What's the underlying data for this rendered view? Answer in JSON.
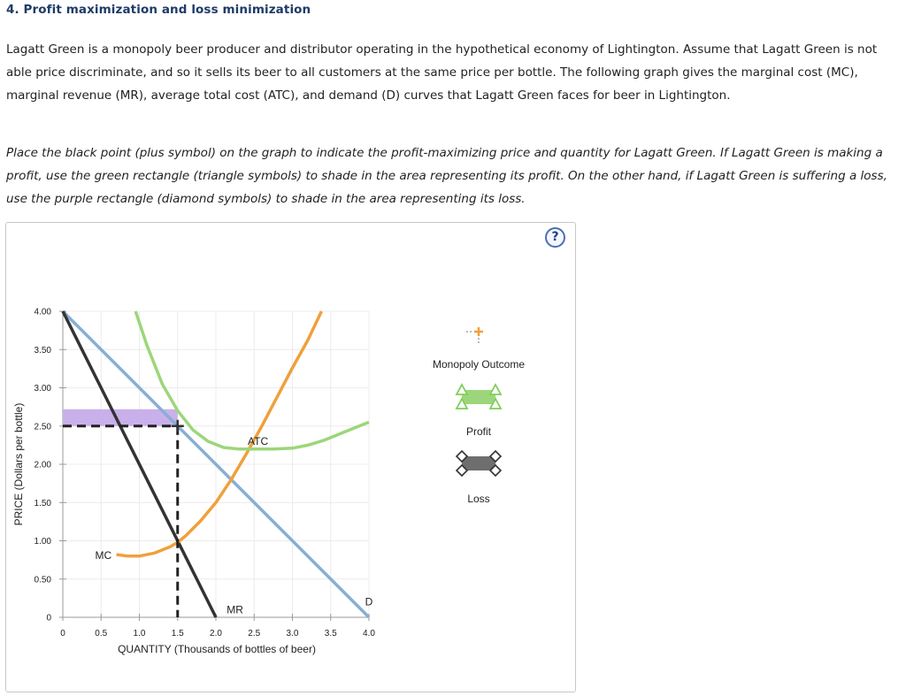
{
  "heading": "4. Profit maximization and loss minimization",
  "intro": "Lagatt Green is a monopoly beer producer and distributor operating in the hypothetical economy of Lightington. Assume that Lagatt Green is not able price discriminate, and so it sells its beer to all customers at the same price per bottle. The following graph gives the marginal cost (MC), marginal revenue (MR), average total cost (ATC), and demand (D) curves that Lagatt Green faces for beer in Lightington.",
  "instructions": "Place the black point (plus symbol) on the graph to indicate the profit-maximizing price and quantity for Lagatt Green. If Lagatt Green is making a profit, use the green rectangle (triangle symbols) to shade in the area representing its profit. On the other hand, if Lagatt Green is suffering a loss, use the purple rectangle (diamond symbols) to shade in the area representing its loss.",
  "help_symbol": "?",
  "legend": {
    "monopoly_outcome": "Monopoly Outcome",
    "profit": "Profit",
    "loss": "Loss"
  },
  "colors": {
    "demand": "#88aed4",
    "mr": "#333333",
    "mc": "#f0a03c",
    "atc": "#9dd67a",
    "loss_fill": "#c9b0ea",
    "profit_fill": "#9dd67a",
    "loss_icon": "#6e6e6e",
    "point": "#333333"
  },
  "chart_data": {
    "type": "line",
    "xlabel": "QUANTITY (Thousands of bottles of beer)",
    "ylabel": "PRICE (Dollars per bottle)",
    "xlim": [
      0,
      4.0
    ],
    "ylim": [
      0,
      4.0
    ],
    "x_ticks": [
      0,
      0.5,
      1.0,
      1.5,
      2.0,
      2.5,
      3.0,
      3.5,
      4.0
    ],
    "x_tick_labels": [
      "0",
      "0.5",
      "1.0",
      "1.5",
      "2.0",
      "2.5",
      "3.0",
      "3.5",
      "4.0"
    ],
    "y_ticks": [
      0,
      0.5,
      1.0,
      1.5,
      2.0,
      2.5,
      3.0,
      3.5,
      4.0
    ],
    "y_tick_labels": [
      "0",
      "0.50",
      "1.00",
      "1.50",
      "2.00",
      "2.50",
      "3.00",
      "3.50",
      "4.00"
    ],
    "grid": true,
    "series": [
      {
        "name": "D",
        "label_at": [
          4.0,
          0.2
        ],
        "points": [
          [
            0,
            4.0
          ],
          [
            4.0,
            0
          ]
        ]
      },
      {
        "name": "MR",
        "label_at": [
          2.25,
          0.1
        ],
        "points": [
          [
            0,
            4.0
          ],
          [
            2.0,
            0
          ]
        ]
      },
      {
        "name": "MC",
        "label_at": [
          0.53,
          0.81
        ],
        "points": [
          [
            0.7,
            0.82
          ],
          [
            0.85,
            0.8
          ],
          [
            1.0,
            0.8
          ],
          [
            1.2,
            0.84
          ],
          [
            1.4,
            0.92
          ],
          [
            1.5,
            0.98
          ],
          [
            1.6,
            1.06
          ],
          [
            1.8,
            1.26
          ],
          [
            2.0,
            1.5
          ],
          [
            2.2,
            1.8
          ],
          [
            2.4,
            2.14
          ],
          [
            2.6,
            2.5
          ],
          [
            2.8,
            2.88
          ],
          [
            3.0,
            3.26
          ],
          [
            3.2,
            3.62
          ],
          [
            3.38,
            4.0
          ]
        ]
      },
      {
        "name": "ATC",
        "label_at": [
          2.55,
          2.3
        ],
        "points": [
          [
            0.95,
            4.0
          ],
          [
            1.1,
            3.55
          ],
          [
            1.3,
            3.05
          ],
          [
            1.5,
            2.7
          ],
          [
            1.7,
            2.45
          ],
          [
            1.9,
            2.3
          ],
          [
            2.1,
            2.22
          ],
          [
            2.3,
            2.2
          ],
          [
            2.5,
            2.2
          ],
          [
            2.75,
            2.2
          ],
          [
            3.0,
            2.21
          ],
          [
            3.2,
            2.25
          ],
          [
            3.4,
            2.31
          ],
          [
            3.6,
            2.39
          ],
          [
            3.8,
            2.47
          ],
          [
            4.0,
            2.55
          ]
        ]
      }
    ],
    "monopoly_outcome": {
      "x": 1.5,
      "y": 2.5
    },
    "loss_area": {
      "x0": 0,
      "x1": 1.5,
      "y0": 2.5,
      "y1": 2.72
    }
  }
}
